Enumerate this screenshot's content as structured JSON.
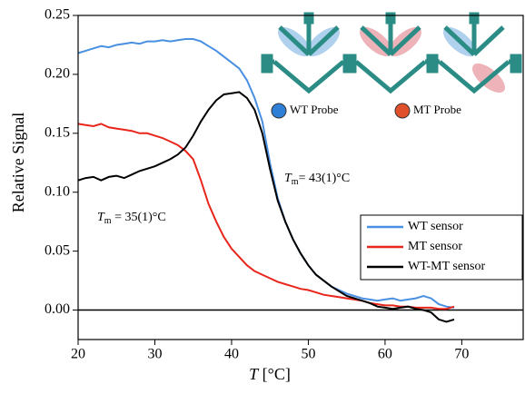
{
  "chart_data": {
    "type": "line",
    "ylabel": "Relative Signal",
    "xlabel": {
      "symbol": "T",
      "text": " [°C]"
    },
    "x": [
      20,
      21,
      22,
      23,
      24,
      25,
      26,
      27,
      28,
      29,
      30,
      31,
      32,
      33,
      34,
      35,
      36,
      37,
      38,
      39,
      40,
      41,
      42,
      43,
      44,
      45,
      46,
      47,
      48,
      49,
      50,
      51,
      52,
      53,
      54,
      55,
      56,
      57,
      58,
      59,
      60,
      61,
      62,
      63,
      64,
      65,
      66,
      67,
      68,
      69
    ],
    "series": [
      {
        "name": "WT sensor",
        "color": "#4a90e2",
        "values": [
          0.218,
          0.22,
          0.222,
          0.224,
          0.223,
          0.225,
          0.226,
          0.227,
          0.226,
          0.228,
          0.228,
          0.229,
          0.228,
          0.229,
          0.23,
          0.23,
          0.228,
          0.224,
          0.22,
          0.215,
          0.21,
          0.205,
          0.195,
          0.18,
          0.16,
          0.125,
          0.095,
          0.075,
          0.06,
          0.048,
          0.038,
          0.03,
          0.025,
          0.02,
          0.017,
          0.014,
          0.012,
          0.01,
          0.009,
          0.008,
          0.009,
          0.01,
          0.008,
          0.009,
          0.01,
          0.012,
          0.01,
          0.005,
          0.003,
          0.002
        ]
      },
      {
        "name": "MT sensor",
        "color": "#e8261c",
        "values": [
          0.158,
          0.157,
          0.156,
          0.158,
          0.155,
          0.154,
          0.153,
          0.152,
          0.15,
          0.15,
          0.148,
          0.146,
          0.143,
          0.14,
          0.135,
          0.128,
          0.11,
          0.09,
          0.075,
          0.062,
          0.052,
          0.045,
          0.038,
          0.033,
          0.03,
          0.027,
          0.024,
          0.022,
          0.02,
          0.018,
          0.017,
          0.015,
          0.013,
          0.012,
          0.011,
          0.01,
          0.009,
          0.008,
          0.006,
          0.005,
          0.004,
          0.004,
          0.003,
          0.003,
          0.002,
          0.002,
          0.002,
          0.001,
          0.001,
          0.003
        ]
      },
      {
        "name": "WT-MT sensor",
        "color": "#000000",
        "values": [
          0.11,
          0.112,
          0.113,
          0.11,
          0.113,
          0.114,
          0.112,
          0.115,
          0.118,
          0.12,
          0.122,
          0.125,
          0.128,
          0.132,
          0.138,
          0.148,
          0.16,
          0.17,
          0.178,
          0.183,
          0.184,
          0.185,
          0.18,
          0.17,
          0.15,
          0.12,
          0.093,
          0.075,
          0.06,
          0.048,
          0.038,
          0.03,
          0.025,
          0.02,
          0.016,
          0.012,
          0.01,
          0.008,
          0.006,
          0.003,
          0.002,
          0.001,
          0.002,
          0.003,
          0.001,
          0.0,
          -0.002,
          -0.008,
          -0.01,
          -0.008
        ]
      }
    ],
    "xlim": [
      20,
      78
    ],
    "ylim": [
      -0.025,
      0.25
    ],
    "xticks": [
      20,
      30,
      40,
      50,
      60,
      70
    ],
    "yticks": [
      {
        "value": 0,
        "label": "0.00"
      },
      {
        "value": 0.05,
        "label": "0.05"
      },
      {
        "value": 0.1,
        "label": "0.10"
      },
      {
        "value": 0.15,
        "label": "0.15"
      },
      {
        "value": 0.2,
        "label": "0.20"
      },
      {
        "value": 0.25,
        "label": "0.25"
      }
    ],
    "hline": 0,
    "legend": "lower right",
    "annotations": [
      {
        "symbol": "T",
        "subscript": "m",
        "text": "= 43(1)°C"
      },
      {
        "symbol": "T",
        "subscript": "m",
        "text": " = 35(1)°C"
      }
    ],
    "inset_legend": [
      {
        "label": "WT Probe",
        "color": "#2f7fd6"
      },
      {
        "label": "MT Probe",
        "color": "#e0502a"
      }
    ]
  }
}
